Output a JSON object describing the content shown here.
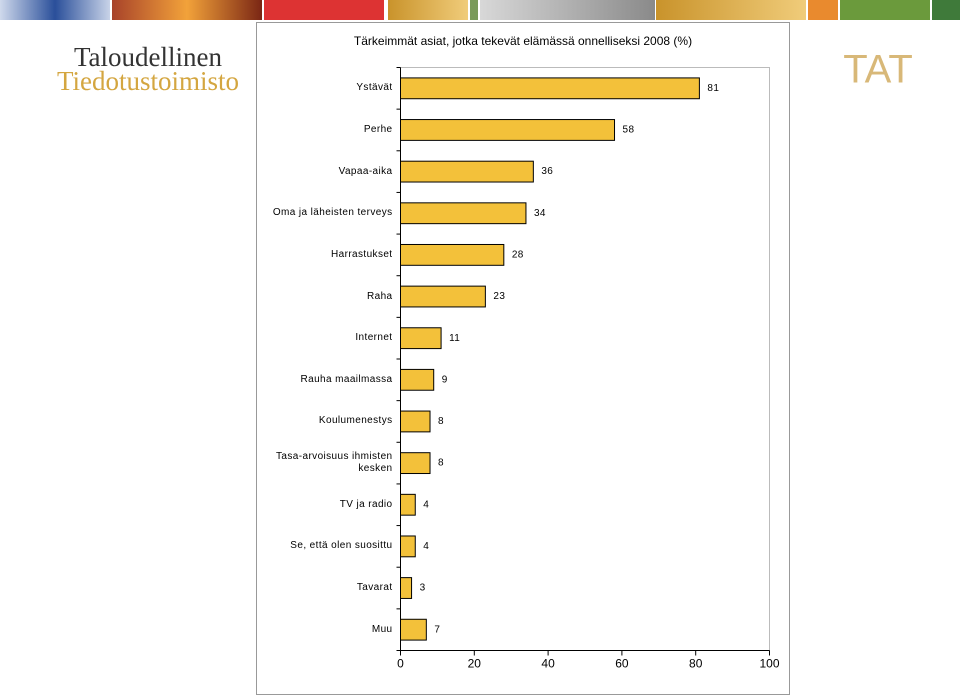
{
  "header": {
    "logo_line1": "Taloudellinen",
    "logo_line2": "Tiedotustoimisto",
    "brand": "TAT"
  },
  "chart_data": {
    "type": "bar",
    "orientation": "horizontal",
    "title": "Tärkeimmät asiat, jotka tekevät elämässä onnelliseksi 2008 (%)",
    "categories": [
      "Ystävät",
      "Perhe",
      "Vapaa-aika",
      "Oma ja läheisten terveys",
      "Harrastukset",
      "Raha",
      "Internet",
      "Rauha maailmassa",
      "Koulumenestys",
      "Tasa-arvoisuus ihmisten kesken",
      "TV ja radio",
      "Se, että olen suosittu",
      "Tavarat",
      "Muu"
    ],
    "values": [
      81,
      58,
      36,
      34,
      28,
      23,
      11,
      9,
      8,
      8,
      4,
      4,
      3,
      7
    ],
    "color": "#f3c13a",
    "xlim": [
      0,
      100
    ],
    "xticks": [
      0,
      20,
      40,
      60,
      80,
      100
    ]
  }
}
